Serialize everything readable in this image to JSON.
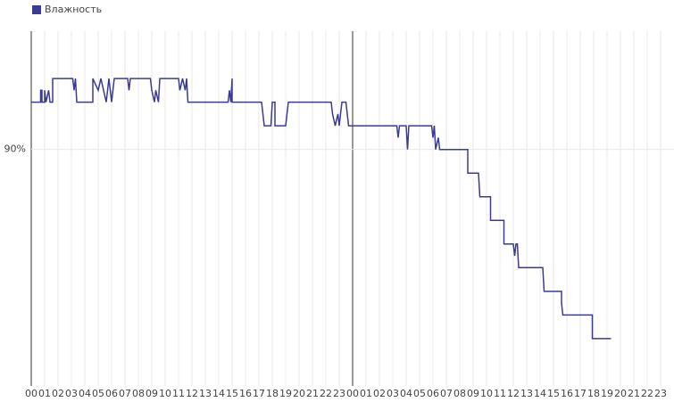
{
  "chart_data": {
    "type": "line",
    "x": [
      0,
      0.7,
      0.7,
      0.8,
      0.8,
      1.0,
      1.0,
      1.1,
      1.3,
      1.4,
      1.6,
      1.6,
      3.1,
      3.2,
      3.3,
      3.4,
      4.6,
      4.6,
      5.0,
      5.2,
      5.6,
      5.8,
      6.0,
      6.2,
      7.2,
      7.3,
      7.4,
      8.9,
      9.0,
      9.2,
      9.3,
      9.5,
      9.6,
      11.0,
      11.1,
      11.3,
      11.5,
      11.6,
      11.7,
      14.7,
      14.8,
      14.9,
      15.0,
      15.0,
      17.2,
      17.4,
      17.9,
      18.0,
      18.2,
      18.2,
      19.0,
      19.2,
      22.4,
      22.5,
      22.7,
      22.9,
      23.0,
      23.2,
      23.5,
      23.7,
      27.3,
      27.4,
      27.5,
      28.0,
      28.1,
      28.2,
      29.9,
      30.0,
      30.1,
      30.2,
      30.4,
      30.5,
      32.6,
      32.6,
      33.4,
      33.5,
      34.3,
      34.3,
      35.3,
      35.3,
      36.0,
      36.1,
      36.2,
      36.3,
      36.4,
      38.2,
      38.3,
      39.6,
      39.6,
      39.7,
      41.9,
      41.9,
      43.3
    ],
    "series": [
      {
        "name": "Влажность",
        "color": "#3b3b96",
        "values": [
          92,
          92,
          92.5,
          92.5,
          92,
          92,
          92.5,
          92,
          92.5,
          92,
          92,
          93,
          93,
          92.5,
          93,
          92,
          92,
          93,
          92.5,
          93,
          92,
          93,
          92,
          93,
          93,
          92.5,
          93,
          93,
          92.5,
          92,
          92.5,
          92,
          93,
          93,
          92.5,
          93,
          92.5,
          93,
          92,
          92,
          92.5,
          92,
          93,
          92,
          92,
          91,
          91,
          92,
          92,
          91,
          91,
          92,
          92,
          91.5,
          91,
          91.5,
          91,
          92,
          92,
          91,
          91,
          90.5,
          91,
          91,
          90,
          91,
          91,
          90.5,
          91,
          90,
          90.5,
          90,
          90,
          89,
          89,
          88,
          88,
          87,
          87,
          86,
          86,
          85.5,
          86,
          86,
          85,
          85,
          84,
          84,
          83.5,
          83,
          83,
          82,
          82
        ]
      }
    ],
    "xlim": [
      0,
      48
    ],
    "xticks": [
      {
        "value": 0,
        "label": "00"
      },
      {
        "value": 1,
        "label": "01"
      },
      {
        "value": 2,
        "label": "02"
      },
      {
        "value": 3,
        "label": "03"
      },
      {
        "value": 4,
        "label": "04"
      },
      {
        "value": 5,
        "label": "05"
      },
      {
        "value": 6,
        "label": "06"
      },
      {
        "value": 7,
        "label": "07"
      },
      {
        "value": 8,
        "label": "08"
      },
      {
        "value": 9,
        "label": "09"
      },
      {
        "value": 10,
        "label": "10"
      },
      {
        "value": 11,
        "label": "11"
      },
      {
        "value": 12,
        "label": "12"
      },
      {
        "value": 13,
        "label": "13"
      },
      {
        "value": 14,
        "label": "14"
      },
      {
        "value": 15,
        "label": "15"
      },
      {
        "value": 16,
        "label": "16"
      },
      {
        "value": 17,
        "label": "17"
      },
      {
        "value": 18,
        "label": "18"
      },
      {
        "value": 19,
        "label": "19"
      },
      {
        "value": 20,
        "label": "20"
      },
      {
        "value": 21,
        "label": "21"
      },
      {
        "value": 22,
        "label": "22"
      },
      {
        "value": 23,
        "label": "23"
      },
      {
        "value": 24,
        "label": "00"
      },
      {
        "value": 25,
        "label": "01"
      },
      {
        "value": 26,
        "label": "02"
      },
      {
        "value": 27,
        "label": "03"
      },
      {
        "value": 28,
        "label": "04"
      },
      {
        "value": 29,
        "label": "05"
      },
      {
        "value": 30,
        "label": "06"
      },
      {
        "value": 31,
        "label": "07"
      },
      {
        "value": 32,
        "label": "08"
      },
      {
        "value": 33,
        "label": "09"
      },
      {
        "value": 34,
        "label": "10"
      },
      {
        "value": 35,
        "label": "11"
      },
      {
        "value": 36,
        "label": "12"
      },
      {
        "value": 37,
        "label": "13"
      },
      {
        "value": 38,
        "label": "14"
      },
      {
        "value": 39,
        "label": "15"
      },
      {
        "value": 40,
        "label": "16"
      },
      {
        "value": 41,
        "label": "17"
      },
      {
        "value": 42,
        "label": "18"
      },
      {
        "value": 43,
        "label": "19"
      },
      {
        "value": 44,
        "label": "20"
      },
      {
        "value": 45,
        "label": "21"
      },
      {
        "value": 46,
        "label": "22"
      },
      {
        "value": 47,
        "label": "23"
      }
    ],
    "ylim": [
      80,
      95
    ],
    "yticks": [
      {
        "value": 90,
        "label": "90%"
      }
    ],
    "grid": true,
    "legend": "top-left"
  }
}
